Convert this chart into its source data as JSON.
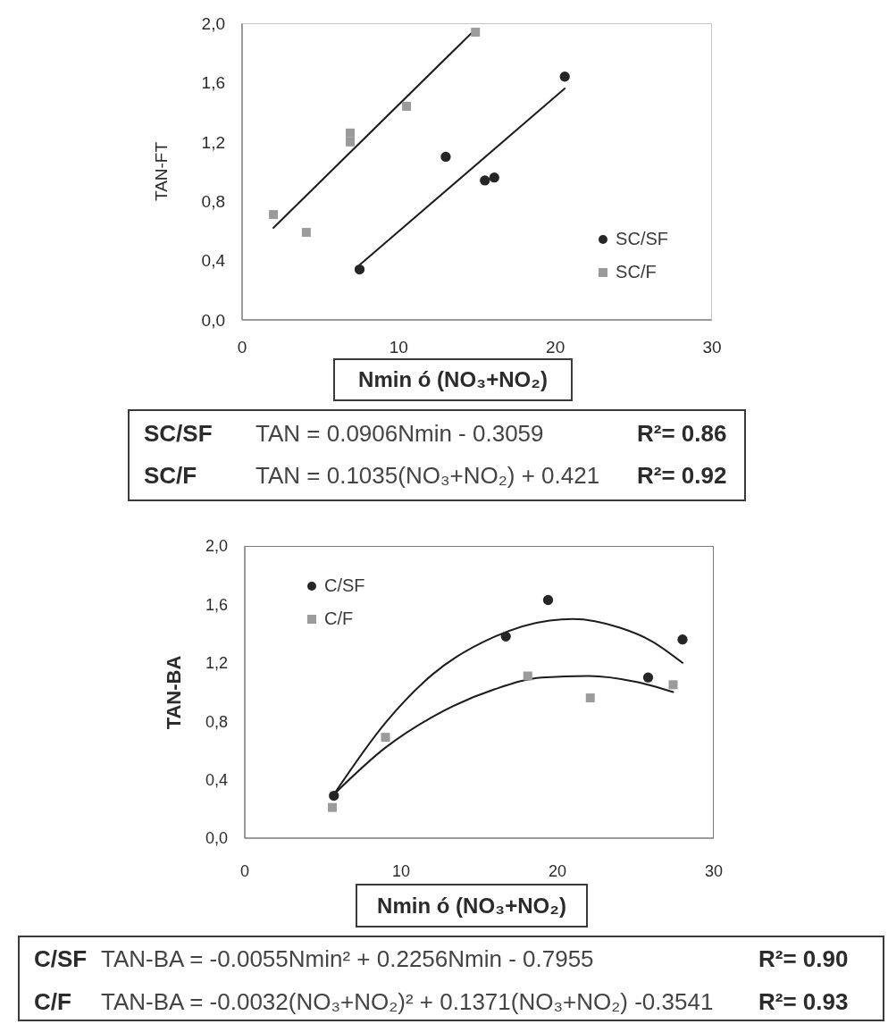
{
  "chart_data": [
    {
      "type": "scatter",
      "xlabel": "Nmin ó (NO₃+NO₂)",
      "ylabel": "TAN-FT",
      "xlim": [
        0,
        30
      ],
      "xticks": [
        0,
        10,
        20,
        30
      ],
      "ylim": [
        0,
        2
      ],
      "yticks": [
        {
          "value": 0,
          "label": "0,0"
        },
        {
          "value": 0.4,
          "label": "0,4"
        },
        {
          "value": 0.8,
          "label": "0,8"
        },
        {
          "value": 1.2,
          "label": "1,2"
        },
        {
          "value": 1.6,
          "label": "1,6"
        },
        {
          "value": 2,
          "label": "2,0"
        }
      ],
      "legend": "bottom right",
      "series": [
        {
          "name": "SC/SF",
          "color": "#262626",
          "marker": "circle",
          "x": [
            7.5,
            13.0,
            15.5,
            16.1,
            20.6
          ],
          "values": [
            0.34,
            1.1,
            0.94,
            0.96,
            1.64
          ]
        },
        {
          "name": "SC/F",
          "color": "#9b9b9b",
          "marker": "square",
          "x": [
            2.0,
            4.1,
            6.9,
            6.9,
            10.5,
            14.9
          ],
          "values": [
            0.71,
            0.59,
            1.26,
            1.2,
            1.44,
            1.94
          ]
        },
        {
          "type": "line",
          "color": "#1c1c1c",
          "marker": "none",
          "x": [
            7.5,
            20.6
          ],
          "values": [
            0.37,
            1.56
          ]
        },
        {
          "type": "line",
          "color": "#1c1c1c",
          "marker": "none",
          "x": [
            2.0,
            14.9
          ],
          "values": [
            0.62,
            1.96
          ]
        }
      ],
      "annotations": [
        "SC/SF",
        "TAN = 0.0906Nmin - 0.3059",
        "R²= 0.86",
        "SC/F",
        "TAN = 0.1035(NO₃+NO₂) + 0.421",
        "R²= 0.92"
      ]
    },
    {
      "type": "scatter",
      "xlabel": "Nmin ó (NO₃+NO₂)",
      "ylabel": "TAN-BA",
      "xlim": [
        0,
        30
      ],
      "xticks": [
        0,
        10,
        20,
        30
      ],
      "ylim": [
        0,
        2
      ],
      "yticks": [
        {
          "value": 0,
          "label": "0,0"
        },
        {
          "value": 0.4,
          "label": "0,4"
        },
        {
          "value": 0.8,
          "label": "0,8"
        },
        {
          "value": 1.2,
          "label": "1,2"
        },
        {
          "value": 1.6,
          "label": "1,6"
        },
        {
          "value": 2,
          "label": "2,0"
        }
      ],
      "legend": "top left",
      "series": [
        {
          "name": "C/SF",
          "color": "#262626",
          "marker": "circle",
          "x": [
            5.7,
            16.7,
            19.4,
            25.8,
            28.0
          ],
          "values": [
            0.29,
            1.38,
            1.63,
            1.1,
            1.36
          ]
        },
        {
          "name": "C/F",
          "color": "#9b9b9b",
          "marker": "square",
          "x": [
            5.6,
            9.0,
            18.1,
            22.1,
            27.4
          ],
          "values": [
            0.21,
            0.69,
            1.11,
            0.96,
            1.05
          ]
        },
        {
          "type": "line",
          "color": "#1c1c1c",
          "marker": "none",
          "x": [
            5.7,
            9,
            12,
            16,
            19.5,
            21,
            24,
            26,
            28
          ],
          "values": [
            0.3,
            0.79,
            1.12,
            1.38,
            1.49,
            1.5,
            1.44,
            1.35,
            1.2
          ]
        },
        {
          "type": "line",
          "color": "#1c1c1c",
          "marker": "none",
          "x": [
            5.7,
            9,
            12,
            16,
            19,
            22,
            25,
            27.4
          ],
          "values": [
            0.3,
            0.62,
            0.83,
            1.02,
            1.1,
            1.11,
            1.07,
            1.0
          ]
        }
      ],
      "annotations": [
        "C/SF",
        "TAN-BA = -0.0055Nmin² + 0.2256Nmin - 0.7955",
        "R²= 0.90",
        "C/F",
        "TAN-BA = -0.0032(NO₃+NO₂)² + 0.1371(NO₃+NO₂) -0.3541",
        "R²= 0.93"
      ]
    }
  ]
}
